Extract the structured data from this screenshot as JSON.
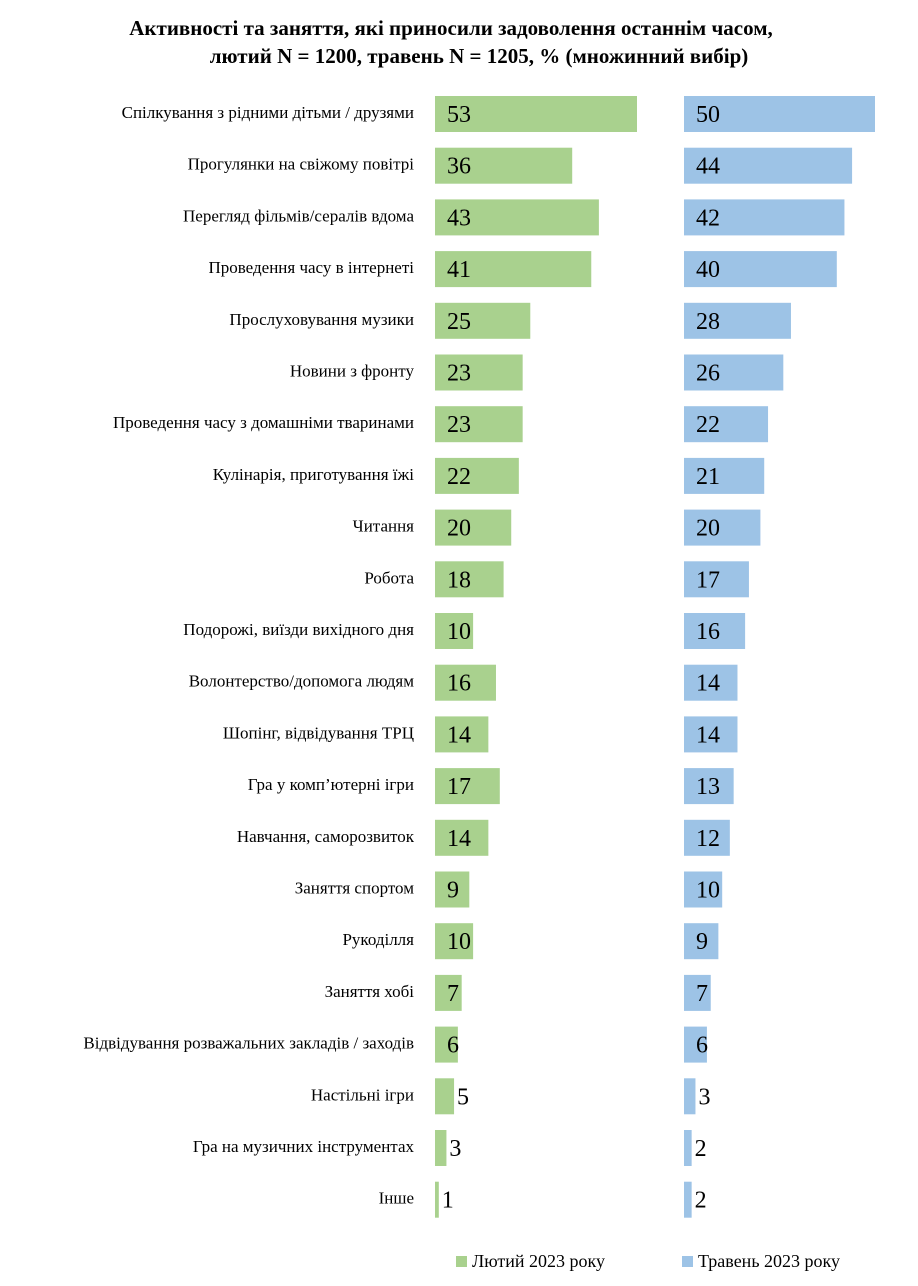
{
  "chart_data": {
    "type": "bar",
    "orientation": "horizontal",
    "title_line1": "Активності та заняття, які приносили задоволення останнім часом,",
    "title_line2": "лютий N = 1200, травень N = 1205, % (множинний вибір)",
    "categories": [
      "Спілкування з рідними дітьми / друзями",
      "Прогулянки на свіжому повітрі",
      "Перегляд фільмів/сералів вдома",
      "Проведення часу в інтернеті",
      "Прослуховування музики",
      "Новини з  фронту",
      "Проведення часу з  домашніми тваринами",
      "Кулінарія, приготування їжі",
      "Читання",
      "Робота",
      "Подорожі, виїзди вихідного дня",
      "Волонтерство/допомога людям",
      "Шопінг, відвідування ТРЦ",
      "Гра  у комп’ютерні ігри",
      "Навчання,   саморозвиток",
      "Заняття  спортом",
      "Рукоділля",
      "Заняття хобі",
      "Відвідування розважальних закладів  /   заходів",
      "Настільні ігри",
      "Гра  на  музичних  інструментах",
      "Інше"
    ],
    "series": [
      {
        "name": "Лютий 2023 року",
        "color": "#a9d18e",
        "values": [
          53,
          36,
          43,
          41,
          25,
          23,
          23,
          22,
          20,
          18,
          10,
          16,
          14,
          17,
          14,
          9,
          10,
          7,
          6,
          5,
          3,
          1
        ]
      },
      {
        "name": "Травень 2023  року",
        "color": "#9dc3e6",
        "values": [
          50,
          44,
          42,
          40,
          28,
          26,
          22,
          21,
          20,
          17,
          16,
          14,
          14,
          13,
          12,
          10,
          9,
          7,
          6,
          3,
          2,
          2
        ]
      }
    ],
    "legend_position": "bottom",
    "grid": false
  }
}
